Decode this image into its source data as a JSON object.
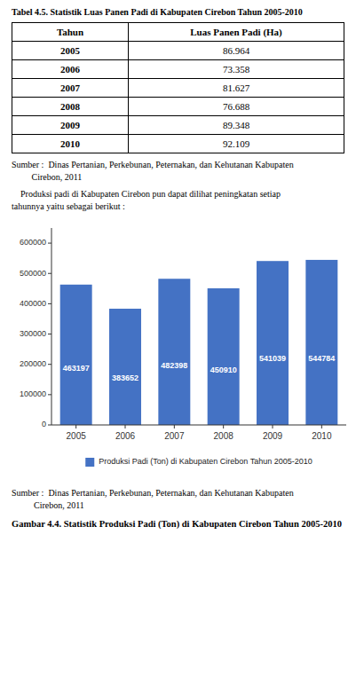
{
  "chart_data": [
    {
      "type": "table",
      "title": "Tabel 4.5. Statistik Luas Panen Padi di Kabupaten Cirebon Tahun 2005-2010",
      "xlabel": "Tahun",
      "categories": [
        "2005",
        "2006",
        "2007",
        "2008",
        "2009",
        "2010"
      ],
      "series": [
        {
          "name": "Luas Panen Padi (Ha)",
          "values": [
            86964,
            73358,
            81627,
            76688,
            89348,
            92109
          ],
          "value_labels": [
            "86.964",
            "73.358",
            "81.627",
            "76.688",
            "89.348",
            "92.109"
          ]
        }
      ],
      "annotations": [
        "Sumber :  Dinas Pertanian, Perkebunan, Peternakan, dan Kehutanan Kabupaten\n         Cirebon, 2011",
        "    Produksi padi di Kabupaten Cirebon pun dapat dilihat peningkatan setiap\ntahunnya yaitu sebagai berikut :"
      ]
    },
    {
      "type": "bar",
      "title": "Gambar 4.4. Statistik Produksi Padi (Ton) di Kabupaten Cirebon Tahun 2005-2010",
      "categories": [
        "2005",
        "2006",
        "2007",
        "2008",
        "2009",
        "2010"
      ],
      "series": [
        {
          "name": "Produksi Padi (Ton) di Kabupaten Cirebon Tahun 2005-2010",
          "color": "#4472C4",
          "values": [
            463197,
            383652,
            482398,
            450910,
            541039,
            544784
          ]
        }
      ],
      "data_labels": true,
      "ylim": [
        0,
        650000
      ],
      "yticks": [
        0,
        100000,
        200000,
        300000,
        400000,
        500000,
        600000
      ],
      "grid": false,
      "legend": "bottom",
      "annotations": [
        "Sumber :  Dinas Pertanian, Perkebunan, Peternakan, dan Kehutanan Kabupaten\n          Cirebon, 2011"
      ]
    }
  ]
}
